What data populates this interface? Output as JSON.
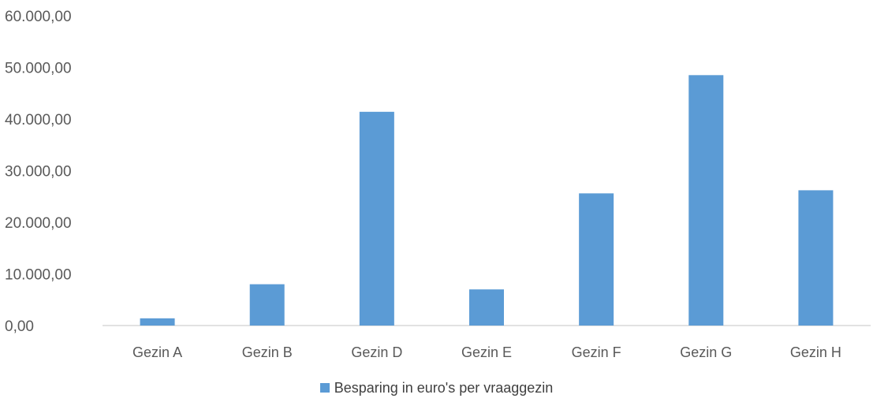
{
  "chart_data": {
    "type": "bar",
    "categories": [
      "Gezin A",
      "Gezin B",
      "Gezin D",
      "Gezin E",
      "Gezin F",
      "Gezin G",
      "Gezin H"
    ],
    "series": [
      {
        "name": "Besparing  in euro's per  vraaggezin",
        "values": [
          1400,
          8000,
          41400,
          7000,
          25600,
          48500,
          26200
        ]
      }
    ],
    "y_ticks": [
      "0,00",
      "10.000,00",
      "20.000,00",
      "30.000,00",
      "40.000,00",
      "50.000,00",
      "60.000,00"
    ],
    "ylim": [
      0,
      60000
    ],
    "grid": false,
    "legend_position": "bottom",
    "bar_color": "#5b9bd5",
    "title": "",
    "xlabel": "",
    "ylabel": ""
  }
}
